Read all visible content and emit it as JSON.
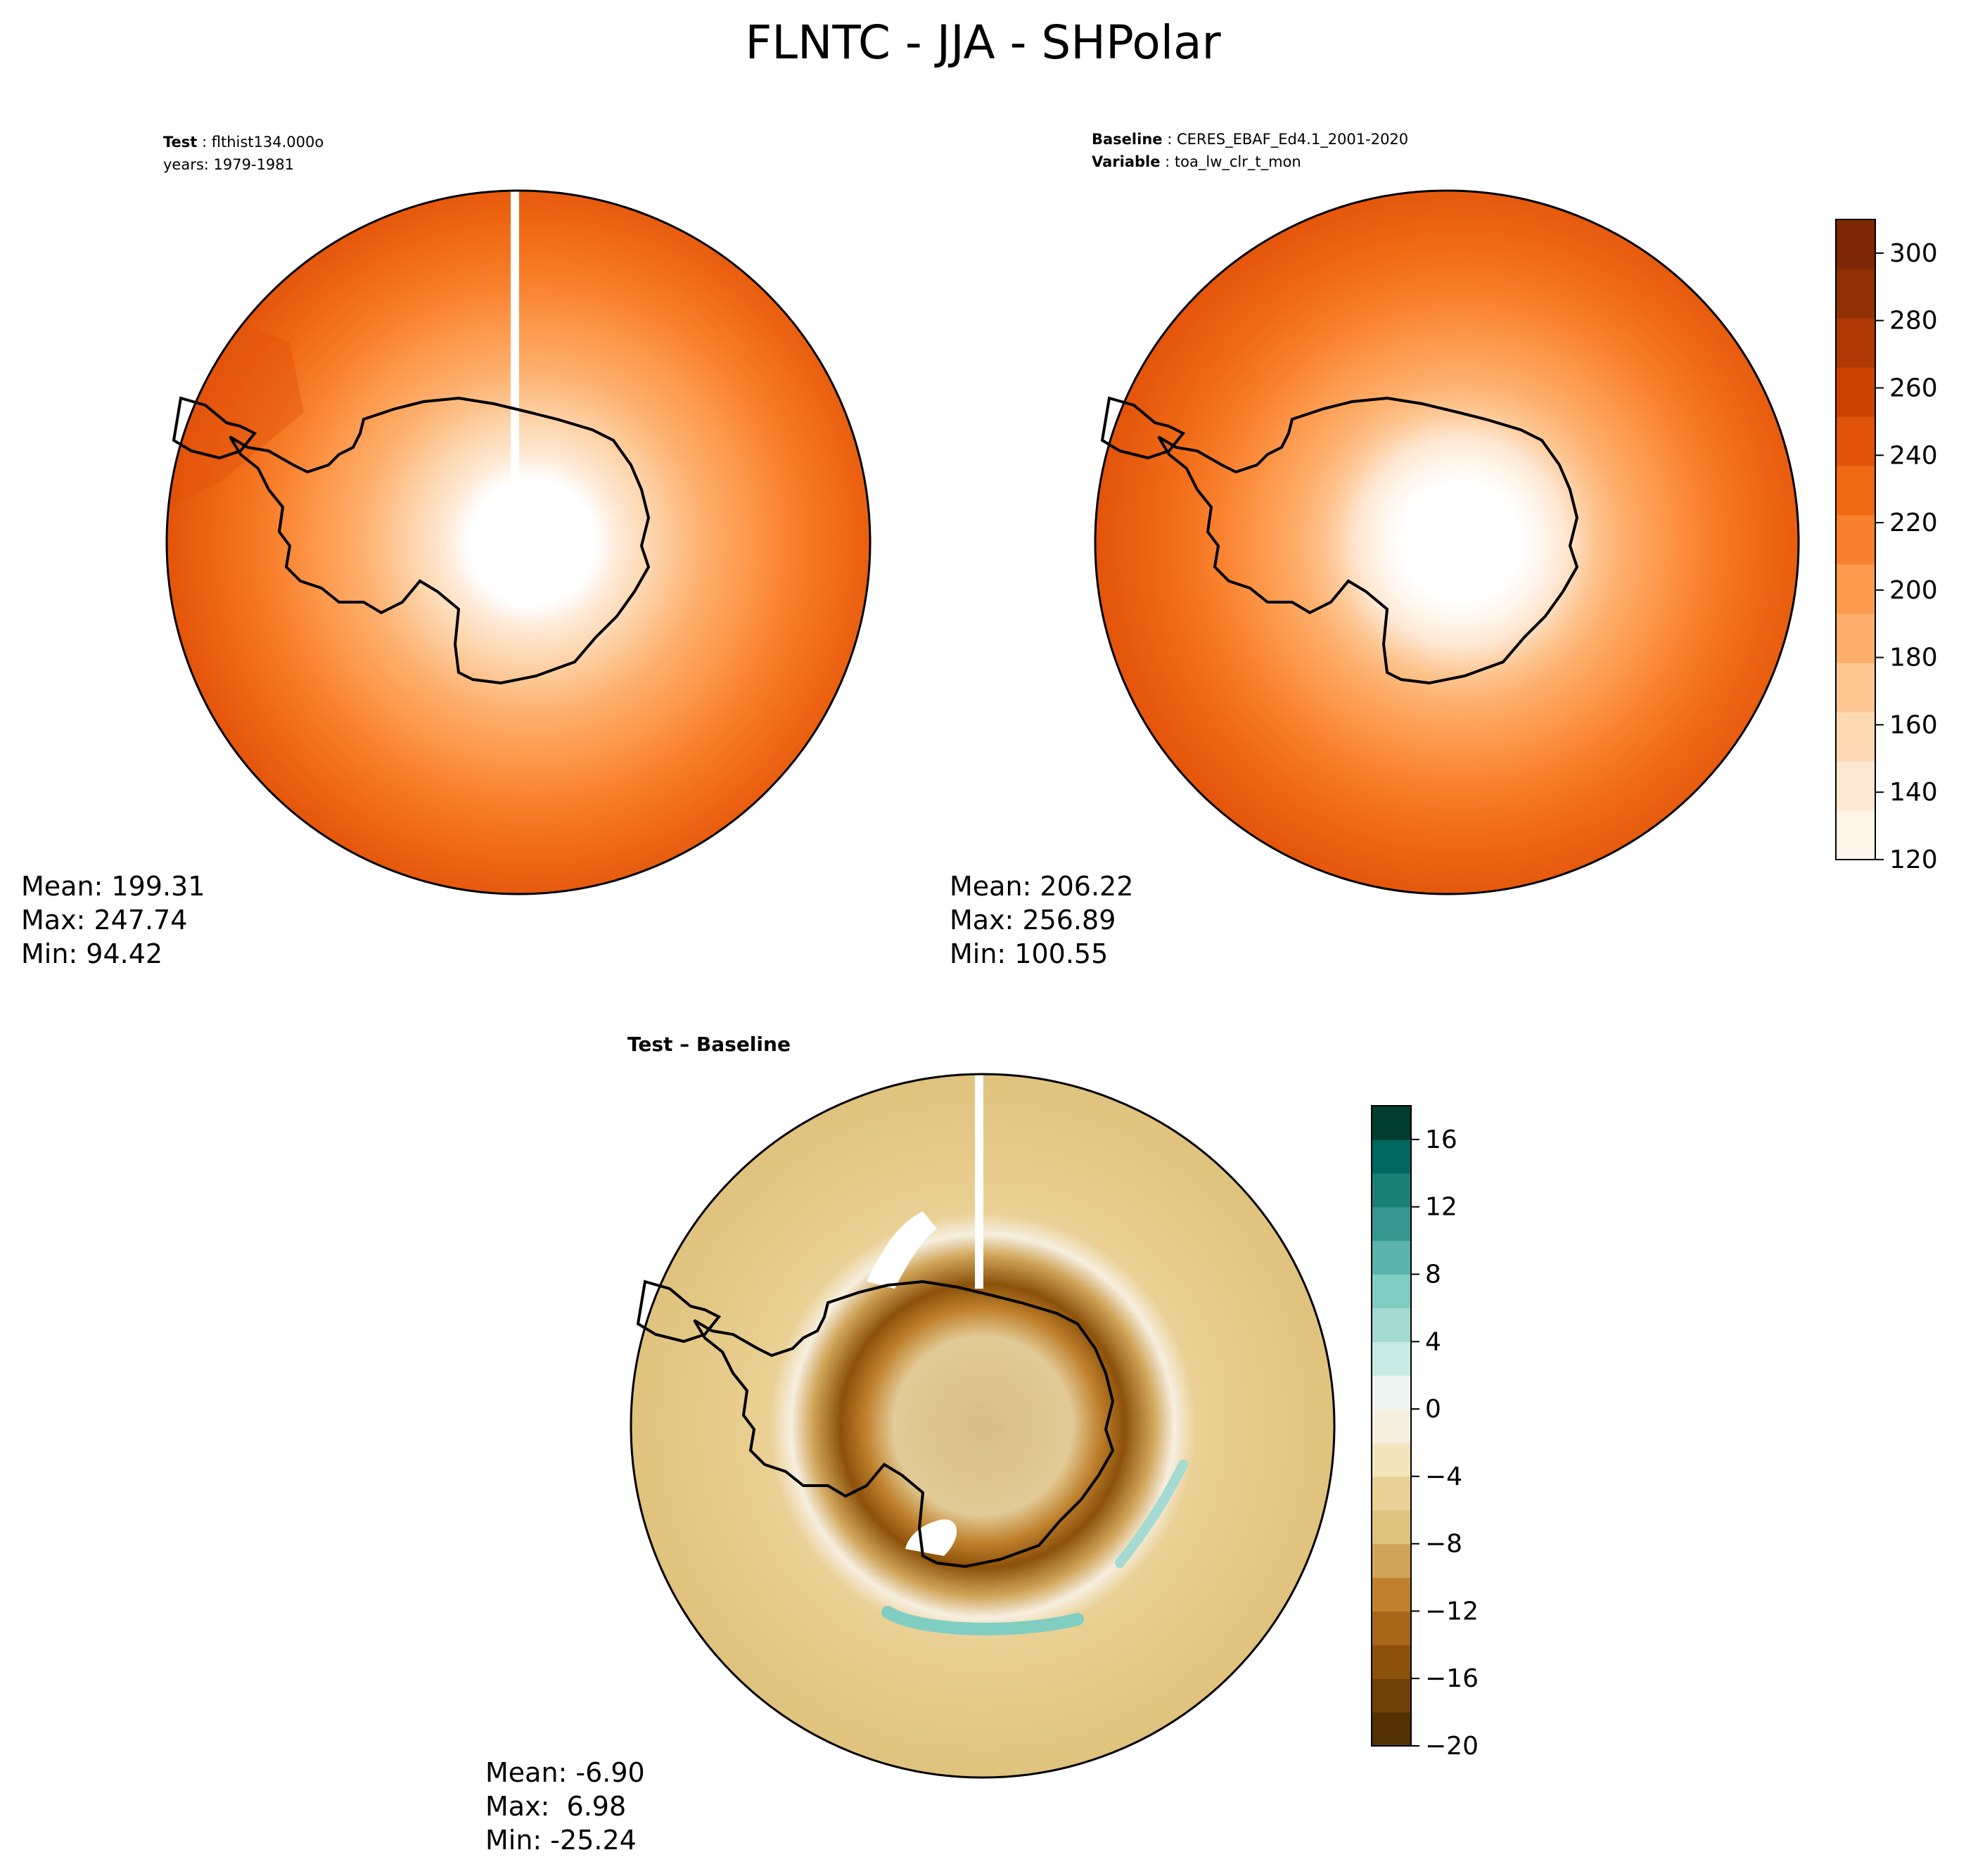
{
  "figure_title": "FLNTC - JJA - SHPolar",
  "panels": {
    "test": {
      "label_key": "Test",
      "label_value": "flthist134.000o",
      "years_line": "years: 1979-1981",
      "stats": {
        "mean": "Mean: 199.31",
        "max": "Max: 247.74",
        "min": "Min: 94.42"
      }
    },
    "baseline": {
      "label_key": "Baseline",
      "label_value": "CERES_EBAF_Ed4.1_2001-2020",
      "variable_key": "Variable",
      "variable_value": "toa_lw_clr_t_mon",
      "stats": {
        "mean": "Mean: 206.22",
        "max": "Max: 256.89",
        "min": "Min: 100.55"
      }
    },
    "difference": {
      "title": "Test – Baseline",
      "stats": {
        "mean": "Mean: -6.90",
        "max": "Max:  6.98",
        "min": "Min: -25.24"
      }
    }
  },
  "chart_data": [
    {
      "type": "heatmap",
      "title": "Test",
      "projection": "south-polar-stereographic",
      "colormap": "Oranges",
      "colorbar": {
        "ticks": [
          120,
          140,
          160,
          180,
          200,
          220,
          240,
          260,
          280,
          300
        ],
        "range": [
          120,
          310
        ]
      },
      "mean": 199.31,
      "max": 247.74,
      "min": 94.42
    },
    {
      "type": "heatmap",
      "title": "Baseline",
      "projection": "south-polar-stereographic",
      "colormap": "Oranges",
      "colorbar": {
        "ticks": [
          120,
          140,
          160,
          180,
          200,
          220,
          240,
          260,
          280,
          300
        ],
        "range": [
          120,
          310
        ]
      },
      "mean": 206.22,
      "max": 256.89,
      "min": 100.55
    },
    {
      "type": "heatmap",
      "title": "Test – Baseline",
      "projection": "south-polar-stereographic",
      "colormap": "BrBG",
      "colorbar": {
        "ticks": [
          "−20",
          "−16",
          "−12",
          "−8",
          "−4",
          "0",
          "4",
          "8",
          "12",
          "16"
        ],
        "range": [
          -20,
          18
        ]
      },
      "mean": -6.9,
      "max": 6.98,
      "min": -25.24
    }
  ],
  "colors": {
    "oranges": [
      "#fff5eb",
      "#fee8d3",
      "#fdd9b4",
      "#fdc692",
      "#fdae6b",
      "#fd9a4e",
      "#f9812d",
      "#f06a16",
      "#e2530a",
      "#cc4301",
      "#b03903",
      "#8e2f04",
      "#7f2704"
    ],
    "brbg": [
      "#543005",
      "#6e4008",
      "#8c510a",
      "#a6671a",
      "#bf812d",
      "#d0a559",
      "#dfc27d",
      "#ead094",
      "#f2e4bc",
      "#f6efe0",
      "#eef6f3",
      "#c7eae5",
      "#a4dad1",
      "#80cdc1",
      "#5ab4ac",
      "#35978f",
      "#1b7f75",
      "#01665e",
      "#003c30"
    ]
  }
}
